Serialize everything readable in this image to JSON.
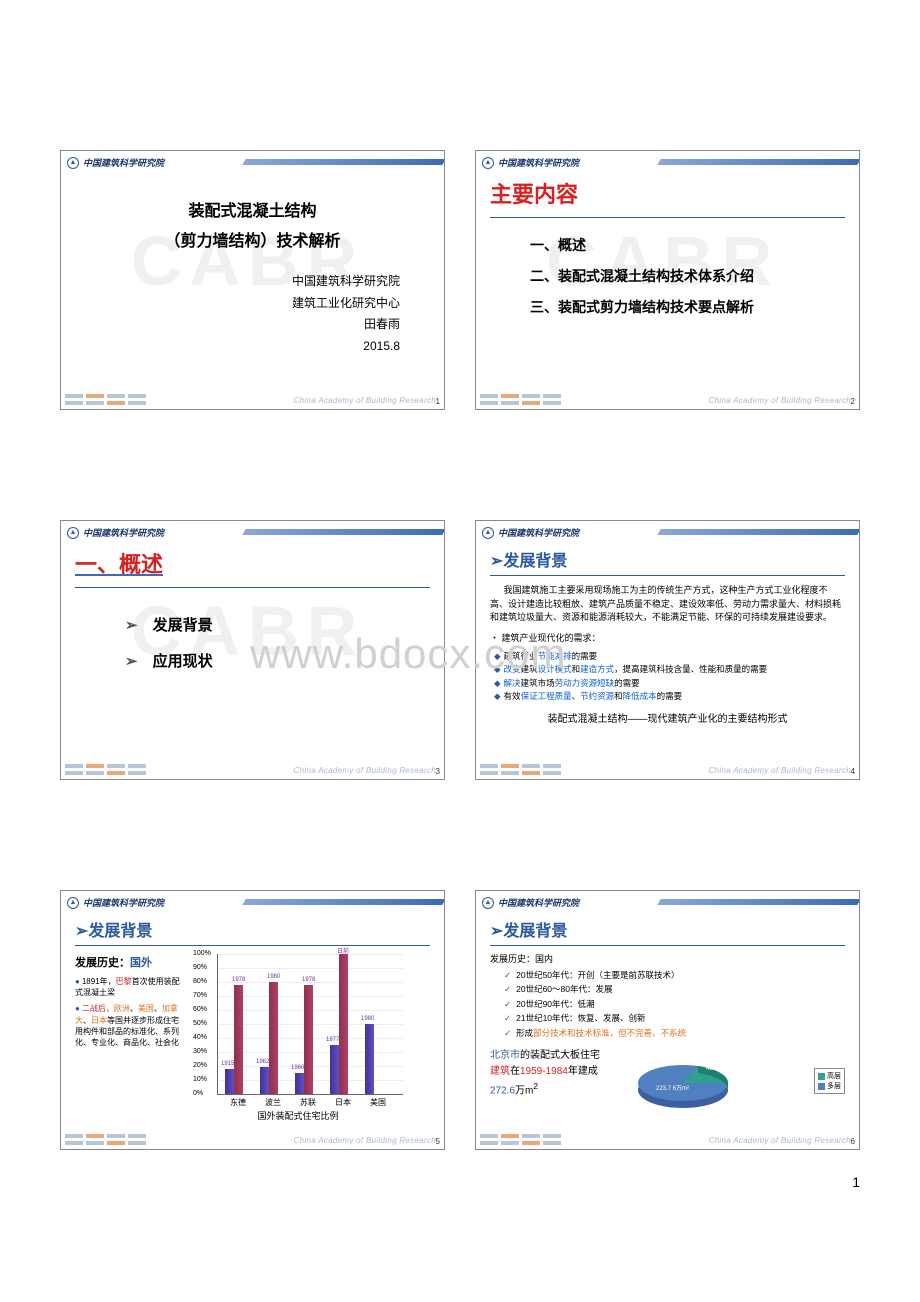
{
  "page": {
    "number": "1",
    "watermark": "www.bdocx.com"
  },
  "common": {
    "logo_text": "中国建筑科学研究院",
    "logo_sub": "China Academy of Building Research",
    "footer_text": "China Academy of Building Research"
  },
  "slide1": {
    "title1": "装配式混凝土结构",
    "title2": "（剪力墙结构）技术解析",
    "org": "中国建筑科学研究院",
    "dept": "建筑工业化研究中心",
    "author": "田春雨",
    "date": "2015.8",
    "num": "1"
  },
  "slide2": {
    "heading": "主要内容",
    "item1": "一、概述",
    "item2": "二、装配式混凝土结构技术体系介绍",
    "item3": "三、装配式剪力墙结构技术要点解析",
    "num": "2"
  },
  "slide3": {
    "heading": "一、概述",
    "item1": "发展背景",
    "item2": "应用现状",
    "num": "3"
  },
  "slide4": {
    "heading_tri": "➢",
    "heading": "发展背景",
    "para": "我国建筑施工主要采用现场施工为主的传统生产方式，这种生产方式工业化程度不高、设计建造比较粗放、建筑产品质量不稳定、建设效率低、劳动力需求量大、材料损耗和建筑垃圾量大、资源和能源消耗较大，不能满足节能、环保的可持续发展建设要求。",
    "need_label": "建筑产业现代化的需求：",
    "b1a": "建筑行业",
    "b1b": "节能减排",
    "b1c": "的需要",
    "b2a": "改变",
    "b2b": "建筑",
    "b2c": "设计模式",
    "b2d": "和",
    "b2e": "建造方式",
    "b2f": "，提高建筑科技含量、性能和质量的需要",
    "b3a": "解决",
    "b3b": "建筑市场",
    "b3c": "劳动力资源短缺",
    "b3d": "的需要",
    "b4a": "有效",
    "b4b": "保证工程质量",
    "b4c": "、",
    "b4d": "节约资源",
    "b4e": "和",
    "b4f": "降低成本",
    "b4g": "的需要",
    "bottom": "装配式混凝土结构——现代建筑产业化的主要结构形式",
    "num": "4"
  },
  "slide5": {
    "heading_tri": "➢",
    "heading": "发展背景",
    "sub_pre": "发展历史：",
    "sub_abroad": "国外",
    "p1a": "1891年，",
    "p1b": "巴黎",
    "p1c": "首次使用装配式混凝土梁",
    "p2a": "二战后，",
    "p2b": "欧洲",
    "p2c": "、",
    "p2d": "美国",
    "p2e": "、",
    "p2f": "加拿大",
    "p2g": "、",
    "p2h": "日本",
    "p2i": "等国并逐步形成住宅用构件和部品的标准化、系列化、专业化、商品化、社会化",
    "chart": {
      "type": "bar",
      "yticks": [
        "0%",
        "10%",
        "20%",
        "30%",
        "40%",
        "50%",
        "60%",
        "70%",
        "80%",
        "90%",
        "100%"
      ],
      "categories": [
        "东德",
        "波兰",
        "苏联",
        "日本",
        "美国"
      ],
      "series1_color": "#4030a0",
      "series2_color": "#903050",
      "data": [
        {
          "cat": "东德",
          "v1": 18,
          "v2": 78,
          "l1": "1915",
          "l2": "1978",
          "l1top": 0,
          "l2top": 0
        },
        {
          "cat": "波兰",
          "v1": 19,
          "v2": 80,
          "l1": "1962",
          "l2": "1980"
        },
        {
          "cat": "苏联",
          "v1": 15,
          "v2": 78,
          "l1": "1960",
          "l2": "1978"
        },
        {
          "cat": "日本",
          "v1": 35,
          "v2": 100,
          "l1": "1977",
          "l2": "日前",
          "jpn": true
        },
        {
          "cat": "美国",
          "v1": 50,
          "v2": 0,
          "l1": "1980",
          "l2": ""
        }
      ],
      "title": "国外装配式住宅比例"
    },
    "num": "5"
  },
  "slide6": {
    "heading_tri": "➢",
    "heading": "发展背景",
    "sub": "发展历史：国内",
    "c1": "20世纪50年代：开创（主要是前苏联技术）",
    "c2": "20世纪60～80年代：发展",
    "c3": "20世纪90年代：低潮",
    "c4": "21世纪10年代：恢复、发展、创新",
    "c5a": "形成",
    "c5b": "部分技术和技术标准，但不完善、不系统",
    "bj1": "北京市",
    "bj2": "的装配式大板住宅",
    "bj3": "建筑",
    "bj4": "在",
    "bj5": "1959-1984",
    "bj6": "年建成",
    "bj7": "272.6",
    "bj8": "万m",
    "bj9": "2",
    "pie": {
      "type": "pie",
      "colors": {
        "high": "#30a090",
        "multi": "#5080c0"
      },
      "high_label": "48.9万m²",
      "multi_label": "223.7 6万m²",
      "legend": [
        {
          "color": "#30a090",
          "label": "高层"
        },
        {
          "color": "#5080c0",
          "label": "多层"
        }
      ]
    },
    "num": "6"
  }
}
